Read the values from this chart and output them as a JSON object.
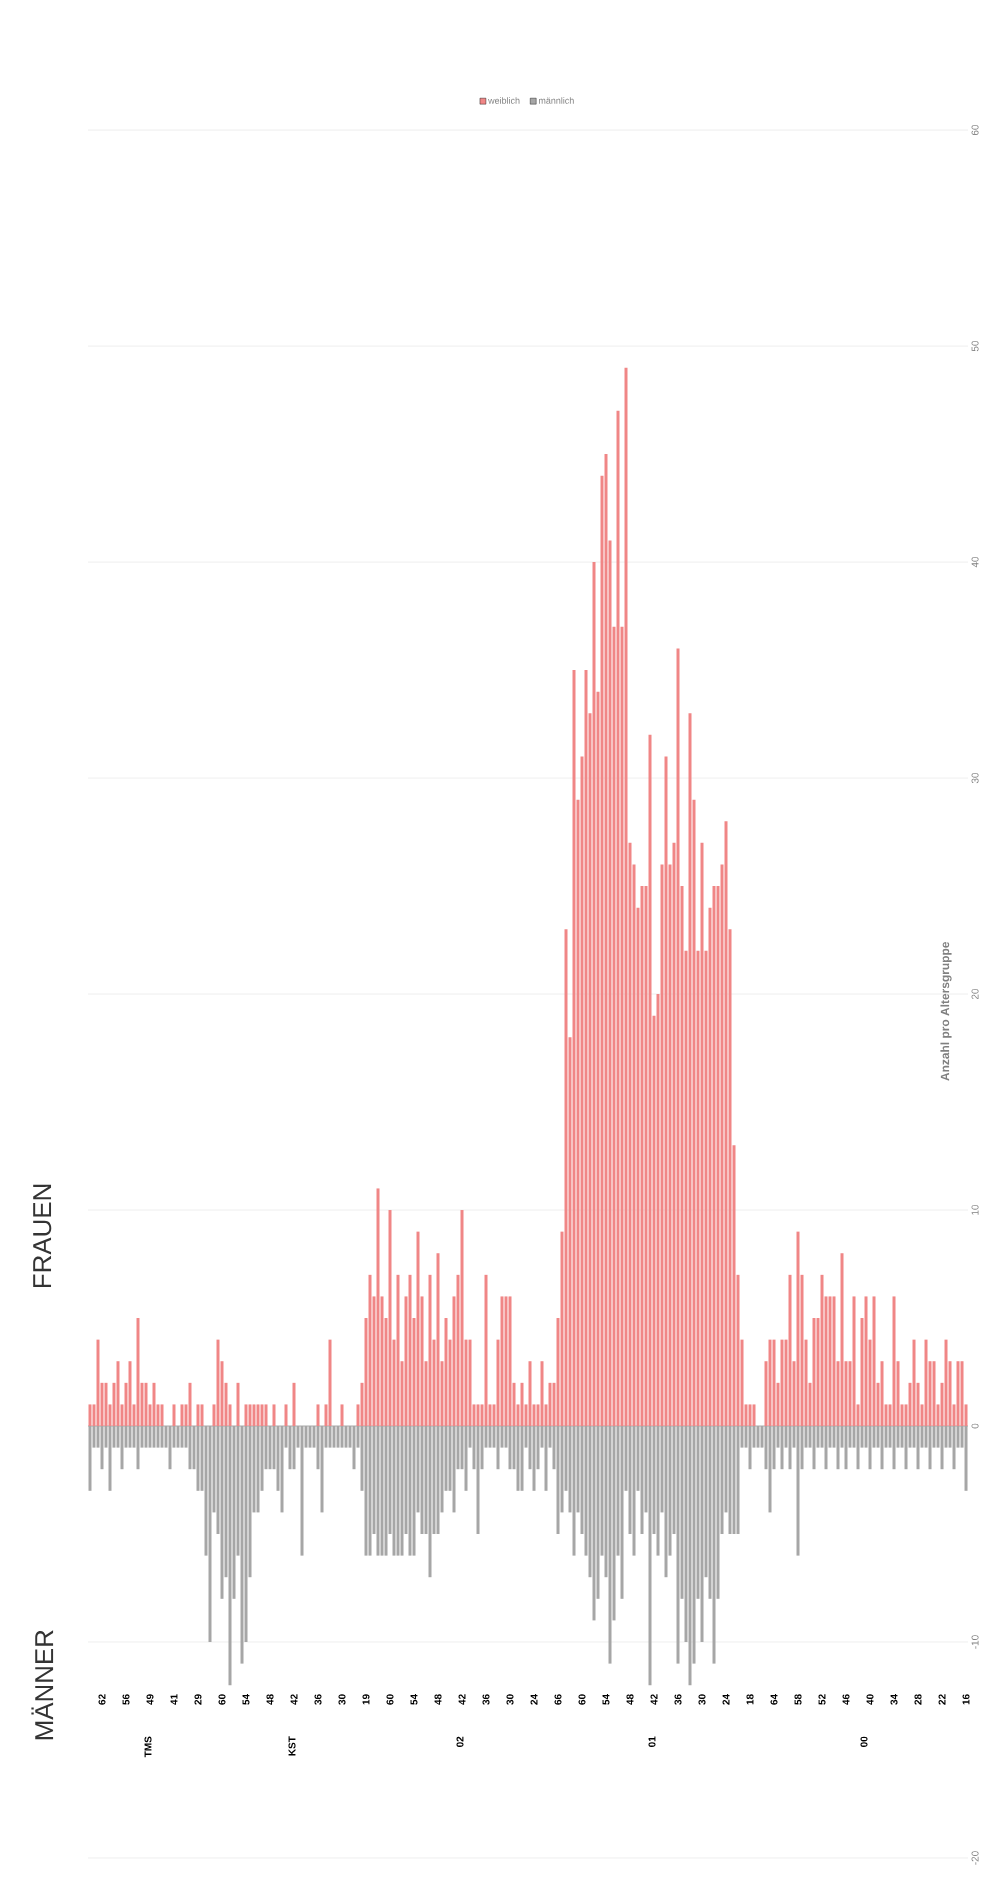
{
  "chart_data": {
    "type": "bar",
    "categories": [
      null,
      null,
      null,
      "62",
      null,
      null,
      null,
      null,
      null,
      "56",
      null,
      null,
      null,
      null,
      null,
      "49",
      null,
      null,
      null,
      null,
      null,
      "41",
      null,
      null,
      null,
      null,
      null,
      "29",
      null,
      null,
      null,
      null,
      null,
      "60",
      null,
      null,
      null,
      null,
      null,
      "54",
      null,
      null,
      null,
      null,
      null,
      "48",
      null,
      null,
      null,
      null,
      null,
      "42",
      null,
      null,
      null,
      null,
      null,
      "36",
      null,
      null,
      null,
      null,
      null,
      "30",
      null,
      null,
      null,
      null,
      null,
      "19",
      null,
      null,
      null,
      null,
      null,
      "60",
      null,
      null,
      null,
      null,
      null,
      "54",
      null,
      null,
      null,
      null,
      null,
      "48",
      null,
      null,
      null,
      null,
      null,
      "42",
      null,
      null,
      null,
      null,
      null,
      "36",
      null,
      null,
      null,
      null,
      null,
      "30",
      null,
      null,
      null,
      null,
      null,
      "24",
      null,
      null,
      null,
      null,
      null,
      "66",
      null,
      null,
      null,
      null,
      null,
      "60",
      null,
      null,
      null,
      null,
      null,
      "54",
      null,
      null,
      null,
      null,
      null,
      "48",
      null,
      null,
      null,
      null,
      null,
      "42",
      null,
      null,
      null,
      null,
      null,
      "36",
      null,
      null,
      null,
      null,
      null,
      "30",
      null,
      null,
      null,
      null,
      null,
      "24",
      null,
      null,
      null,
      null,
      null,
      "18",
      null,
      null,
      null,
      null,
      null,
      "64",
      null,
      null,
      null,
      null,
      null,
      "58",
      null,
      null,
      null,
      null,
      null,
      "52",
      null,
      null,
      null,
      null,
      null,
      "46",
      null,
      null,
      null,
      null,
      null,
      "40",
      null,
      null,
      null,
      null,
      null,
      "34",
      null,
      null,
      null,
      null,
      null,
      "28",
      null,
      null,
      null,
      null,
      null,
      "22",
      null,
      null,
      null,
      null,
      null,
      "16"
    ],
    "series": [
      {
        "name": "weiblich",
        "color": "#f08686",
        "values": [
          1,
          1,
          4,
          2,
          2,
          1,
          2,
          3,
          1,
          2,
          3,
          1,
          5,
          2,
          2,
          1,
          2,
          1,
          1,
          0,
          0,
          1,
          0,
          1,
          1,
          2,
          0,
          1,
          1,
          0,
          0,
          1,
          4,
          3,
          2,
          1,
          0,
          2,
          0,
          1,
          1,
          1,
          1,
          1,
          1,
          0,
          1,
          0,
          0,
          1,
          0,
          2,
          0,
          0,
          0,
          0,
          0,
          1,
          0,
          1,
          4,
          0,
          0,
          1,
          0,
          0,
          0,
          1,
          2,
          5,
          7,
          6,
          11,
          6,
          5,
          10,
          4,
          7,
          3,
          6,
          7,
          5,
          9,
          6,
          3,
          7,
          4,
          8,
          3,
          5,
          4,
          6,
          7,
          10,
          4,
          4,
          1,
          1,
          1,
          7,
          1,
          1,
          4,
          6,
          6,
          6,
          2,
          1,
          2,
          1,
          3,
          1,
          1,
          3,
          1,
          2,
          2,
          5,
          9,
          23,
          18,
          35,
          29,
          31,
          35,
          33,
          40,
          34,
          44,
          45,
          41,
          37,
          47,
          37,
          49,
          27,
          26,
          24,
          25,
          25,
          32,
          19,
          20,
          26,
          31,
          26,
          27,
          36,
          25,
          22,
          33,
          29,
          22,
          27,
          22,
          24,
          25,
          25,
          26,
          28,
          23,
          13,
          7,
          4,
          1,
          1,
          1,
          0,
          0,
          3,
          4,
          4,
          2,
          4,
          4,
          7,
          3,
          9,
          7,
          4,
          2,
          5,
          5,
          7,
          6,
          6,
          6,
          3,
          8,
          3,
          3,
          6,
          1,
          5,
          6,
          4,
          6,
          2,
          3,
          1,
          1,
          6,
          3,
          1,
          1,
          2,
          4,
          2,
          1,
          4,
          3,
          3,
          1,
          2,
          4,
          3,
          1,
          3,
          3,
          1
        ]
      },
      {
        "name": "männlich",
        "color": "#a6a6a6",
        "values": [
          -3,
          -1,
          -1,
          -2,
          -1,
          -3,
          -1,
          -1,
          -2,
          -1,
          -1,
          -1,
          -2,
          -1,
          -1,
          -1,
          -1,
          -1,
          -1,
          -1,
          -2,
          -1,
          -1,
          -1,
          -1,
          -2,
          -2,
          -3,
          -3,
          -6,
          -10,
          -4,
          -5,
          -8,
          -7,
          -12,
          -8,
          -6,
          -11,
          -10,
          -7,
          -4,
          -4,
          -3,
          -2,
          -2,
          -2,
          -3,
          -4,
          -1,
          -2,
          -2,
          -1,
          -6,
          -1,
          -1,
          -1,
          -2,
          -4,
          -1,
          -1,
          -1,
          -1,
          -1,
          -1,
          -1,
          -2,
          -1,
          -3,
          -6,
          -6,
          -5,
          -6,
          -6,
          -6,
          -5,
          -6,
          -6,
          -6,
          -5,
          -6,
          -6,
          -4,
          -5,
          -5,
          -7,
          -5,
          -5,
          -4,
          -3,
          -3,
          -4,
          -2,
          -2,
          -3,
          -1,
          -2,
          -5,
          -2,
          -1,
          -1,
          -1,
          -2,
          -1,
          -1,
          -2,
          -2,
          -3,
          -3,
          -1,
          -2,
          -3,
          -2,
          -1,
          -3,
          -1,
          -2,
          -5,
          -4,
          -3,
          -4,
          -6,
          -4,
          -5,
          -6,
          -7,
          -9,
          -8,
          -6,
          -7,
          -11,
          -9,
          -6,
          -8,
          -3,
          -5,
          -6,
          -3,
          -5,
          -4,
          -12,
          -5,
          -6,
          -4,
          -7,
          -6,
          -5,
          -11,
          -8,
          -10,
          -12,
          -11,
          -8,
          -10,
          -7,
          -8,
          -11,
          -8,
          -5,
          -4,
          -5,
          -5,
          -5,
          -1,
          -1,
          -2,
          -1,
          -1,
          -1,
          -2,
          -4,
          -2,
          -1,
          -2,
          -1,
          -2,
          -1,
          -6,
          -2,
          -1,
          -1,
          -2,
          -1,
          -1,
          -2,
          -1,
          -1,
          -2,
          -1,
          -2,
          -1,
          -1,
          -2,
          -1,
          -1,
          -2,
          -1,
          -1,
          -2,
          -1,
          -1,
          -2,
          -1,
          -1,
          -2,
          -1,
          -1,
          -2,
          -1,
          -1,
          -2,
          -1,
          -1,
          -2,
          -1,
          -1,
          -2,
          -1,
          -1,
          -3
        ]
      }
    ],
    "stacked": true,
    "ylabel": "Anzahl pro Altersgruppe",
    "ylim": [
      -20,
      60
    ],
    "yticks": [
      -20,
      -10,
      0,
      10,
      20,
      30,
      40,
      50,
      60
    ],
    "grid": "y",
    "legend": "top",
    "annotations": [
      "TMS",
      "KST",
      "02",
      "01",
      "00",
      "FRAUEN",
      "MÄNNER"
    ]
  }
}
